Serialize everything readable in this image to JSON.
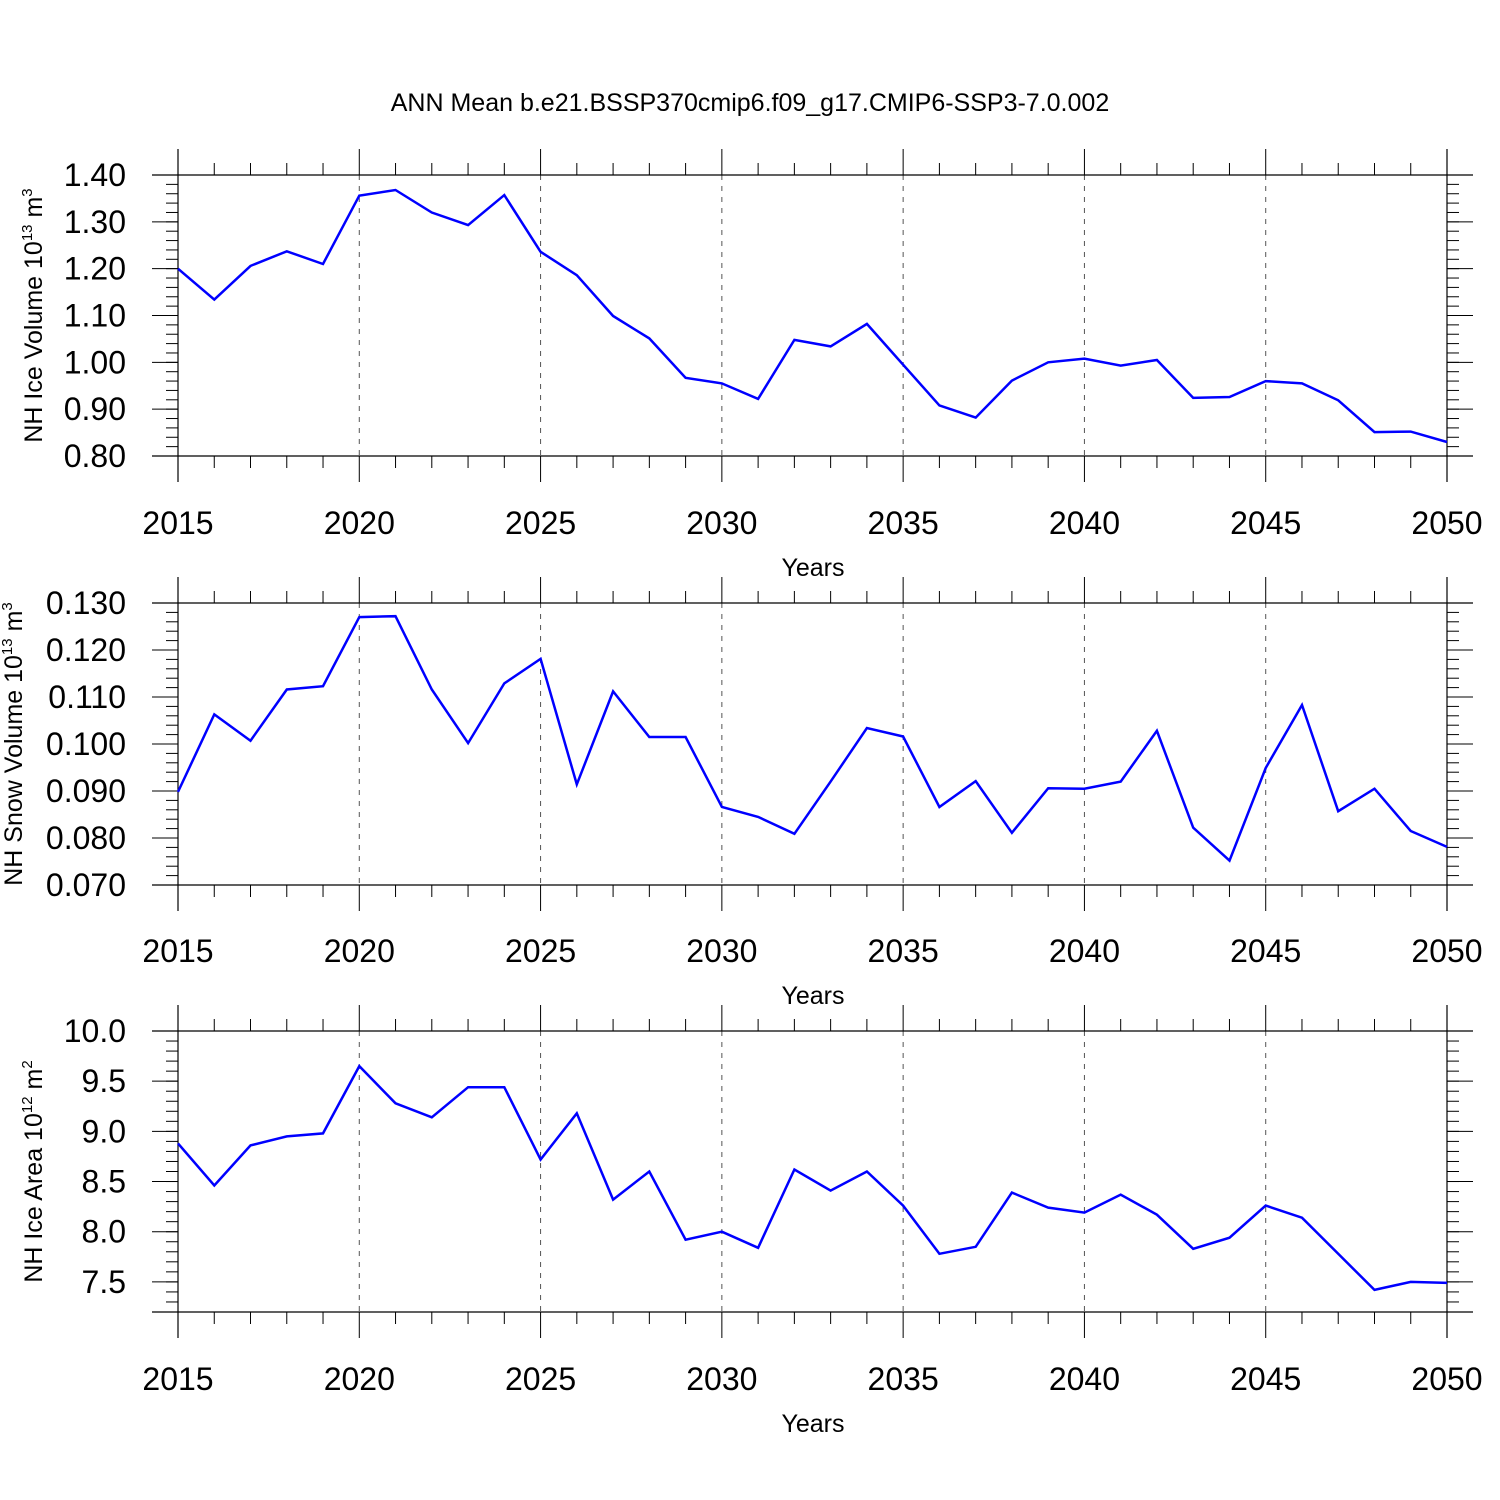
{
  "title": "ANN Mean b.e21.BSSP370cmip6.f09_g17.CMIP6-SSP3-7.0.002",
  "chart_data": [
    {
      "type": "line",
      "color": "#0000ff",
      "ylabel": "NH Ice Volume 10",
      "ylabel_exp": "13",
      "ylabel_unit": " m",
      "ylabel_unit_exp": "3",
      "xlabel": "Years",
      "xlim": [
        2015,
        2050
      ],
      "ylim": [
        0.8,
        1.4
      ],
      "xticks": [
        "2015",
        "2020",
        "2025",
        "2030",
        "2035",
        "2040",
        "2045",
        "2050"
      ],
      "yticks": [
        "0.80",
        "0.90",
        "1.00",
        "1.10",
        "1.20",
        "1.30",
        "1.40"
      ],
      "x": [
        2015,
        2016,
        2017,
        2018,
        2019,
        2020,
        2021,
        2022,
        2023,
        2024,
        2025,
        2026,
        2027,
        2028,
        2029,
        2030,
        2031,
        2032,
        2033,
        2034,
        2035,
        2036,
        2037,
        2038,
        2039,
        2040,
        2041,
        2042,
        2043,
        2044,
        2045,
        2046,
        2047,
        2048,
        2049,
        2050
      ],
      "values": [
        1.2,
        1.134,
        1.206,
        1.237,
        1.21,
        1.356,
        1.368,
        1.32,
        1.293,
        1.357,
        1.236,
        1.186,
        1.099,
        1.051,
        0.967,
        0.955,
        0.922,
        1.048,
        1.034,
        1.082,
        0.995,
        0.908,
        0.882,
        0.961,
        1.0,
        1.008,
        0.993,
        1.005,
        0.924,
        0.926,
        0.96,
        0.955,
        0.919,
        0.851,
        0.852,
        0.83
      ]
    },
    {
      "type": "line",
      "color": "#0000ff",
      "ylabel": "NH Snow Volume 10",
      "ylabel_exp": "13",
      "ylabel_unit": " m",
      "ylabel_unit_exp": "3",
      "xlabel": "Years",
      "xlim": [
        2015,
        2050
      ],
      "ylim": [
        0.07,
        0.13
      ],
      "xticks": [
        "2015",
        "2020",
        "2025",
        "2030",
        "2035",
        "2040",
        "2045",
        "2050"
      ],
      "yticks": [
        "0.070",
        "0.080",
        "0.090",
        "0.100",
        "0.110",
        "0.120",
        "0.130"
      ],
      "x": [
        2015,
        2016,
        2017,
        2018,
        2019,
        2020,
        2021,
        2022,
        2023,
        2024,
        2025,
        2026,
        2027,
        2028,
        2029,
        2030,
        2031,
        2032,
        2033,
        2034,
        2035,
        2036,
        2037,
        2038,
        2039,
        2040,
        2041,
        2042,
        2043,
        2044,
        2045,
        2046,
        2047,
        2048,
        2049,
        2050
      ],
      "values": [
        0.0898,
        0.1063,
        0.1007,
        0.1116,
        0.1123,
        0.127,
        0.1272,
        0.1116,
        0.1002,
        0.1129,
        0.1181,
        0.0914,
        0.1112,
        0.1015,
        0.1015,
        0.0866,
        0.0845,
        0.0809,
        0.092,
        0.1034,
        0.1016,
        0.0866,
        0.0921,
        0.0811,
        0.0906,
        0.0905,
        0.092,
        0.1028,
        0.0822,
        0.0752,
        0.0949,
        0.1083,
        0.0857,
        0.0905,
        0.0815,
        0.0781
      ]
    },
    {
      "type": "line",
      "color": "#0000ff",
      "ylabel": "NH Ice Area 10",
      "ylabel_exp": "12",
      "ylabel_unit": " m",
      "ylabel_unit_exp": "2",
      "xlabel": "Years",
      "xlim": [
        2015,
        2050
      ],
      "ylim": [
        7.2,
        10.0
      ],
      "xticks": [
        "2015",
        "2020",
        "2025",
        "2030",
        "2035",
        "2040",
        "2045",
        "2050"
      ],
      "yticks": [
        "7.5",
        "8.0",
        "8.5",
        "9.0",
        "9.5",
        "10.0"
      ],
      "x": [
        2015,
        2016,
        2017,
        2018,
        2019,
        2020,
        2021,
        2022,
        2023,
        2024,
        2025,
        2026,
        2027,
        2028,
        2029,
        2030,
        2031,
        2032,
        2033,
        2034,
        2035,
        2036,
        2037,
        2038,
        2039,
        2040,
        2041,
        2042,
        2043,
        2044,
        2045,
        2046,
        2047,
        2048,
        2049,
        2050
      ],
      "values": [
        8.88,
        8.46,
        8.86,
        8.95,
        8.98,
        9.65,
        9.28,
        9.14,
        9.44,
        9.44,
        8.72,
        9.18,
        8.32,
        8.6,
        7.92,
        8.0,
        7.84,
        8.62,
        8.41,
        8.6,
        8.26,
        7.78,
        7.85,
        8.39,
        8.24,
        8.19,
        8.37,
        8.17,
        7.83,
        7.94,
        8.26,
        8.14,
        7.78,
        7.42,
        7.5,
        7.49
      ]
    }
  ]
}
